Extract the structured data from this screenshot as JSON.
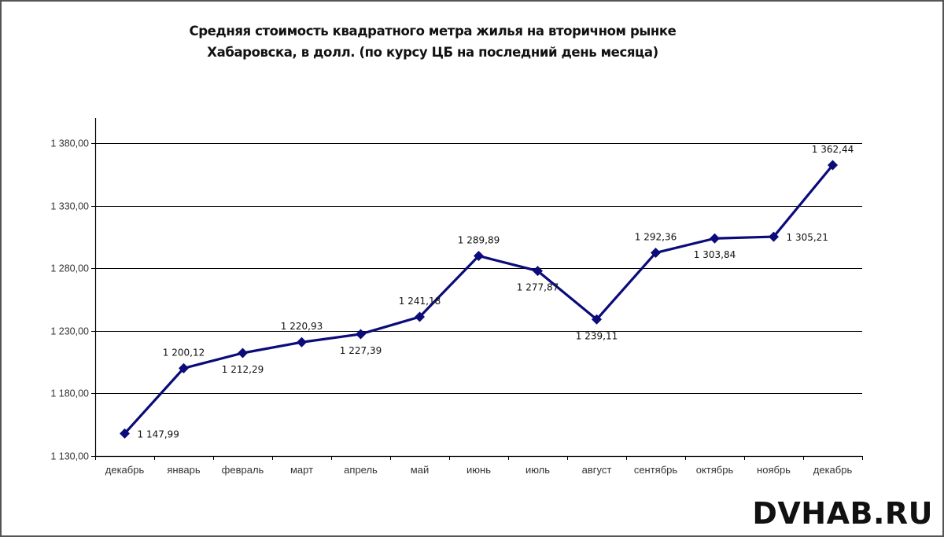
{
  "title": {
    "line1": "Средняя стоимость квадратного метра жилья на вторичном рынке",
    "line2": "Хабаровска, в долл. (по курсу ЦБ на последний день месяца)"
  },
  "watermark": "DVHAB.RU",
  "colors": {
    "series": "#0b0b7a",
    "grid": "#000000",
    "frame": "#555555"
  },
  "chart_data": {
    "type": "line",
    "title": "Средняя стоимость квадратного метра жилья на вторичном рынке Хабаровска, в долл. (по курсу ЦБ на последний день месяца)",
    "xlabel": "",
    "ylabel": "",
    "categories": [
      "декабрь",
      "январь",
      "февраль",
      "март",
      "апрель",
      "май",
      "июнь",
      "июль",
      "август",
      "сентябрь",
      "октябрь",
      "ноябрь",
      "декабрь"
    ],
    "series": [
      {
        "name": "Средняя стоимость кв. м, долл.",
        "values": [
          1147.99,
          1200.12,
          1212.29,
          1220.93,
          1227.39,
          1241.18,
          1289.89,
          1277.87,
          1239.11,
          1292.36,
          1303.84,
          1305.21,
          1362.44
        ],
        "labels": [
          "1 147,99",
          "1 200,12",
          "1 212,29",
          "1 220,93",
          "1 227,39",
          "1 241,18",
          "1 289,89",
          "1 277,87",
          "1 239,11",
          "1 292,36",
          "1 303,84",
          "1 305,21",
          "1 362,44"
        ],
        "label_positions": [
          "right",
          "above",
          "below",
          "above",
          "below",
          "above",
          "above",
          "below",
          "below",
          "above",
          "below",
          "right",
          "above"
        ],
        "marker": "diamond",
        "color": "#0b0b7a"
      }
    ],
    "ylim": [
      1130,
      1400
    ],
    "yticks": [
      1130,
      1180,
      1230,
      1280,
      1330,
      1380
    ],
    "ytick_labels": [
      "1 130,00",
      "1 180,00",
      "1 230,00",
      "1 280,00",
      "1 330,00",
      "1 380,00"
    ],
    "grid": true,
    "legend": "none"
  }
}
